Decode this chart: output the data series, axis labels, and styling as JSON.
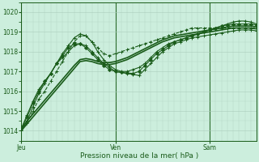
{
  "background_color": "#cceedd",
  "grid_color": "#aaccbb",
  "line_color": "#1a5c1a",
  "title": "Pression niveau de la mer( hPa )",
  "ylim": [
    1013.5,
    1020.5
  ],
  "yticks": [
    1014,
    1015,
    1016,
    1017,
    1018,
    1019,
    1020
  ],
  "xlabel_ticks": [
    "Jeu",
    "Ven",
    "Sam"
  ],
  "xlabel_tick_positions": [
    0.08,
    0.42,
    0.78
  ],
  "series": [
    {
      "x": [
        0,
        6,
        12,
        18,
        24,
        30,
        36,
        42,
        48,
        54,
        60,
        66,
        72,
        78,
        84,
        90,
        96,
        102,
        108,
        114,
        120,
        126,
        132,
        138,
        144,
        150,
        156,
        162,
        168,
        174,
        180,
        186,
        192,
        198,
        204,
        210,
        216,
        222,
        228,
        234,
        240
      ],
      "y": [
        1014.0,
        1014.4,
        1015.0,
        1015.6,
        1016.0,
        1016.5,
        1017.0,
        1017.5,
        1018.0,
        1018.5,
        1018.8,
        1018.8,
        1018.5,
        1018.2,
        1017.9,
        1017.8,
        1017.9,
        1018.0,
        1018.1,
        1018.2,
        1018.3,
        1018.4,
        1018.5,
        1018.6,
        1018.7,
        1018.8,
        1018.9,
        1019.0,
        1019.1,
        1019.2,
        1019.2,
        1019.2,
        1019.2,
        1019.2,
        1019.2,
        1019.2,
        1019.2,
        1019.2,
        1019.2,
        1019.2,
        1019.2
      ],
      "marker": "+",
      "linestyle": "--",
      "markersize": 3,
      "linewidth": 0.8
    },
    {
      "x": [
        0,
        6,
        12,
        18,
        24,
        30,
        36,
        42,
        48,
        54,
        60,
        66,
        72,
        78,
        84,
        90,
        96,
        102,
        108,
        114,
        120,
        126,
        132,
        138,
        144,
        150,
        156,
        162,
        168,
        174,
        180,
        186,
        192,
        198,
        204,
        210,
        216,
        222,
        228,
        234,
        240
      ],
      "y": [
        1014.0,
        1014.5,
        1015.2,
        1015.9,
        1016.4,
        1016.9,
        1017.4,
        1017.9,
        1018.3,
        1018.7,
        1018.9,
        1018.8,
        1018.5,
        1018.0,
        1017.6,
        1017.3,
        1017.1,
        1017.0,
        1017.0,
        1017.1,
        1017.2,
        1017.4,
        1017.7,
        1018.0,
        1018.2,
        1018.4,
        1018.5,
        1018.6,
        1018.7,
        1018.8,
        1018.9,
        1019.0,
        1019.1,
        1019.2,
        1019.3,
        1019.4,
        1019.5,
        1019.55,
        1019.55,
        1019.5,
        1019.4
      ],
      "marker": "+",
      "linestyle": "-",
      "markersize": 3,
      "linewidth": 0.8
    },
    {
      "x": [
        0,
        6,
        12,
        18,
        24,
        30,
        36,
        42,
        48,
        54,
        60,
        66,
        72,
        78,
        84,
        90,
        96,
        102,
        108,
        114,
        120,
        126,
        132,
        138,
        144,
        150,
        156,
        162,
        168,
        174,
        180,
        186,
        192,
        198,
        204,
        210,
        216,
        222,
        228,
        234,
        240
      ],
      "y": [
        1014.0,
        1014.35,
        1014.7,
        1015.05,
        1015.4,
        1015.75,
        1016.1,
        1016.45,
        1016.8,
        1017.15,
        1017.5,
        1017.55,
        1017.5,
        1017.4,
        1017.35,
        1017.35,
        1017.4,
        1017.5,
        1017.6,
        1017.75,
        1017.9,
        1018.05,
        1018.2,
        1018.35,
        1018.5,
        1018.6,
        1018.7,
        1018.75,
        1018.8,
        1018.85,
        1018.9,
        1018.95,
        1019.0,
        1019.05,
        1019.1,
        1019.15,
        1019.2,
        1019.2,
        1019.2,
        1019.2,
        1019.15
      ],
      "marker": null,
      "linestyle": "-",
      "markersize": 0,
      "linewidth": 1.2
    },
    {
      "x": [
        0,
        6,
        12,
        18,
        24,
        30,
        36,
        42,
        48,
        54,
        60,
        66,
        72,
        78,
        84,
        90,
        96,
        102,
        108,
        114,
        120,
        126,
        132,
        138,
        144,
        150,
        156,
        162,
        168,
        174,
        180,
        186,
        192,
        198,
        204,
        210,
        216,
        222,
        228,
        234,
        240
      ],
      "y": [
        1014.1,
        1014.5,
        1014.85,
        1015.2,
        1015.55,
        1015.9,
        1016.25,
        1016.6,
        1016.95,
        1017.3,
        1017.6,
        1017.65,
        1017.6,
        1017.5,
        1017.45,
        1017.45,
        1017.5,
        1017.6,
        1017.7,
        1017.85,
        1018.0,
        1018.15,
        1018.3,
        1018.45,
        1018.6,
        1018.7,
        1018.8,
        1018.85,
        1018.9,
        1018.95,
        1019.0,
        1019.05,
        1019.1,
        1019.15,
        1019.2,
        1019.25,
        1019.3,
        1019.3,
        1019.3,
        1019.3,
        1019.25
      ],
      "marker": null,
      "linestyle": "-",
      "markersize": 0,
      "linewidth": 1.2
    },
    {
      "x": [
        0,
        6,
        12,
        18,
        24,
        30,
        36,
        42,
        48,
        54,
        60,
        66,
        72,
        78,
        84,
        90,
        96,
        102,
        108,
        114,
        120,
        126,
        132,
        138,
        144,
        150,
        156,
        162,
        168,
        174,
        180,
        186,
        192,
        198,
        204,
        210,
        216,
        222,
        228,
        234,
        240
      ],
      "y": [
        1014.1,
        1014.7,
        1015.4,
        1016.0,
        1016.5,
        1016.9,
        1017.4,
        1017.8,
        1018.2,
        1018.4,
        1018.4,
        1018.2,
        1017.9,
        1017.6,
        1017.3,
        1017.1,
        1017.0,
        1016.95,
        1016.92,
        1016.9,
        1017.0,
        1017.3,
        1017.6,
        1017.9,
        1018.1,
        1018.3,
        1018.5,
        1018.6,
        1018.7,
        1018.8,
        1018.9,
        1019.0,
        1019.1,
        1019.2,
        1019.3,
        1019.35,
        1019.4,
        1019.4,
        1019.4,
        1019.4,
        1019.35
      ],
      "marker": "D",
      "linestyle": "-",
      "markersize": 2,
      "linewidth": 0.8
    },
    {
      "x": [
        0,
        6,
        12,
        18,
        24,
        30,
        36,
        42,
        48,
        54,
        60,
        66,
        72,
        78,
        84,
        90,
        96,
        102,
        108,
        114,
        120,
        126,
        132,
        138,
        144,
        150,
        156,
        162,
        168,
        174,
        180,
        186,
        192,
        198,
        204,
        210,
        216,
        222,
        228,
        234,
        240
      ],
      "y": [
        1014.1,
        1014.8,
        1015.5,
        1016.1,
        1016.5,
        1016.9,
        1017.4,
        1017.7,
        1018.0,
        1018.3,
        1018.4,
        1018.3,
        1018.0,
        1017.7,
        1017.4,
        1017.2,
        1017.0,
        1016.95,
        1016.9,
        1016.85,
        1016.8,
        1017.1,
        1017.4,
        1017.7,
        1018.0,
        1018.2,
        1018.4,
        1018.5,
        1018.6,
        1018.7,
        1018.75,
        1018.8,
        1018.85,
        1018.9,
        1018.95,
        1019.0,
        1019.05,
        1019.1,
        1019.1,
        1019.1,
        1019.05
      ],
      "marker": "+",
      "linestyle": "-",
      "markersize": 3,
      "linewidth": 0.8
    }
  ]
}
